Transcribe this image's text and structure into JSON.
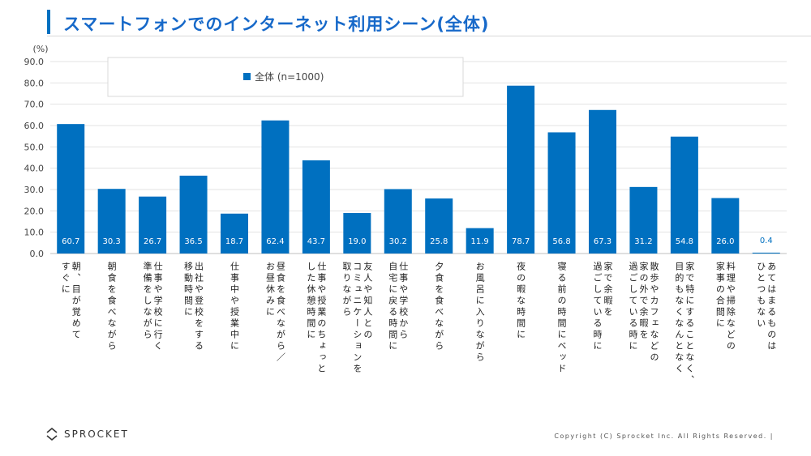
{
  "title": "スマートフォンでのインターネット利用シーン(全体)",
  "logo_text": "SPROCKET",
  "copyright": "Copyright (C) Sprocket Inc. All Rights Reserved. |",
  "colors": {
    "accent": "#0070c0",
    "title": "#1769c9"
  },
  "chart_data": {
    "type": "bar",
    "ylabel": "(%)",
    "ylim": [
      0,
      90
    ],
    "yticks": [
      "0.0",
      "10.0",
      "20.0",
      "30.0",
      "40.0",
      "50.0",
      "60.0",
      "70.0",
      "80.0",
      "90.0"
    ],
    "grid": true,
    "legend_position": "top-left",
    "series": [
      {
        "name": "全体 (n=1000)",
        "color": "#0070c0",
        "values": [
          60.7,
          30.3,
          26.7,
          36.5,
          18.7,
          62.4,
          43.7,
          19.0,
          30.2,
          25.8,
          11.9,
          78.7,
          56.8,
          67.3,
          31.2,
          54.8,
          26.0,
          0.4
        ],
        "value_labels": [
          "60.7",
          "30.3",
          "26.7",
          "36.5",
          "18.7",
          "62.4",
          "43.7",
          "19.0",
          "30.2",
          "25.8",
          "11.9",
          "78.7",
          "56.8",
          "67.3",
          "31.2",
          "54.8",
          "26.0",
          "0.4"
        ]
      }
    ],
    "categories": [
      [
        "朝、目が覚めて",
        "すぐに"
      ],
      [
        "朝食を食べながら"
      ],
      [
        "仕事や学校に行く",
        "準備をしながら"
      ],
      [
        "出社や登校をする",
        "移動時間に"
      ],
      [
        "仕事中や授業中に"
      ],
      [
        "昼食を食べながら／",
        "お昼休みに"
      ],
      [
        "仕事や授業のちょっと",
        "した休憩時間に"
      ],
      [
        "友人や知人との",
        "コミュニケーションを",
        "取りながら"
      ],
      [
        "仕事や学校から",
        "自宅に戻る時間に"
      ],
      [
        "夕食を食べながら"
      ],
      [
        "お風呂に入りながら"
      ],
      [
        "夜の暇な時間に"
      ],
      [
        "寝る前の時間にベッド"
      ],
      [
        "家で余暇を",
        "過ごしている時に"
      ],
      [
        "散歩やカフェなどの",
        "家の外で余暇を",
        "過ごしている時に"
      ],
      [
        "家で特にすることなく、",
        "目的もなくなんとなく"
      ],
      [
        "料理や掃除などの",
        "家事の合間に"
      ],
      [
        "あてはまるものは",
        "ひとつもない"
      ]
    ]
  }
}
